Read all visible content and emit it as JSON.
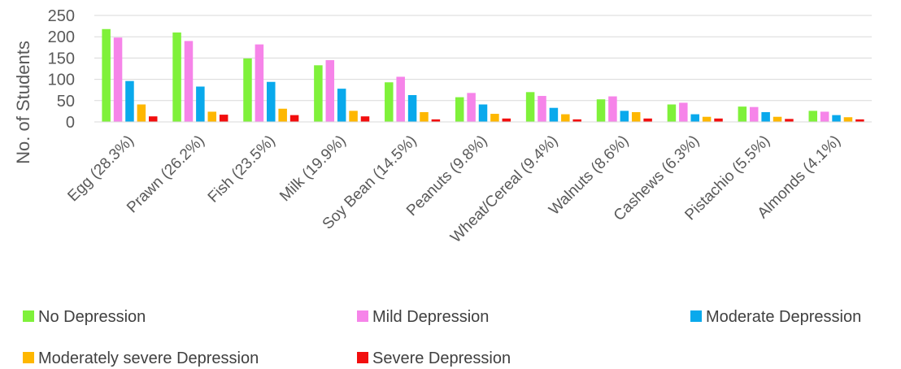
{
  "chart_data": {
    "type": "bar",
    "ylabel": "No. of Students",
    "xlabel": "",
    "title": "",
    "ylim": [
      0,
      250
    ],
    "yticks": [
      0,
      50,
      100,
      150,
      200,
      250
    ],
    "grid": true,
    "legend_position": "bottom",
    "categories": [
      "Egg (28.3%)",
      "Prawn (26.2%)",
      "Fish (23.5%)",
      "Milk (19.9%)",
      "Soy Bean (14.5%)",
      "Peanuts (9.8%)",
      "Wheat/Cereal (9.4%)",
      "Walnuts (8.6%)",
      "Cashews (6.3%)",
      "Pistachio (5.5%)",
      "Almonds (4.1%)"
    ],
    "series": [
      {
        "name": "No Depression",
        "color": "#7FF13A",
        "values": [
          218,
          210,
          149,
          133,
          93,
          58,
          70,
          53,
          41,
          36,
          26
        ]
      },
      {
        "name": "Mild Depression",
        "color": "#F684E9",
        "values": [
          198,
          190,
          182,
          145,
          106,
          68,
          61,
          60,
          45,
          35,
          24
        ]
      },
      {
        "name": "Moderate Depression",
        "color": "#09A9EC",
        "values": [
          96,
          83,
          94,
          78,
          63,
          41,
          33,
          26,
          18,
          23,
          16
        ]
      },
      {
        "name": "Moderately severe Depression",
        "color": "#FEB700",
        "values": [
          41,
          24,
          31,
          26,
          23,
          19,
          18,
          23,
          12,
          12,
          11
        ]
      },
      {
        "name": "Severe Depression",
        "color": "#F20E0E",
        "values": [
          13,
          17,
          16,
          13,
          6,
          8,
          6,
          8,
          8,
          7,
          6
        ]
      }
    ]
  }
}
